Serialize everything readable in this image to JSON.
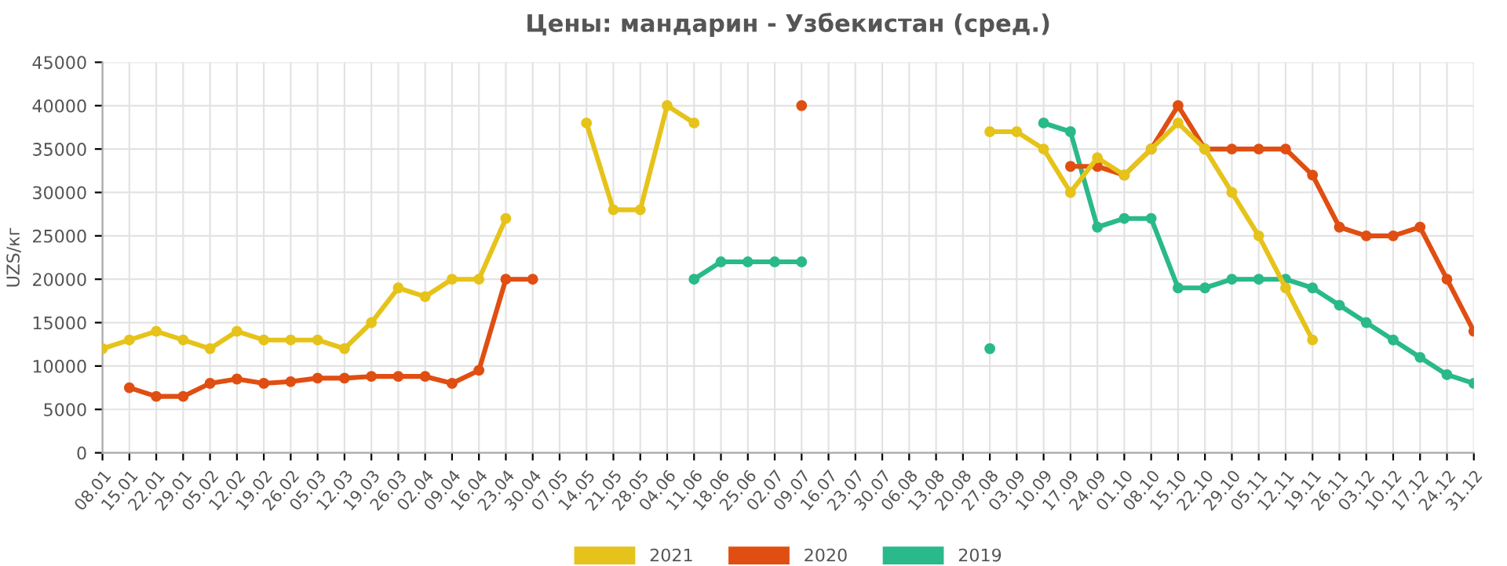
{
  "chart_data": {
    "type": "line",
    "title": "Цены: мандарин - Узбекистан (сред.)",
    "ylabel": "UZS/кг",
    "categories": [
      "08.01",
      "15.01",
      "22.01",
      "29.01",
      "05.02",
      "12.02",
      "19.02",
      "26.02",
      "05.03",
      "12.03",
      "19.03",
      "26.03",
      "02.04",
      "09.04",
      "16.04",
      "23.04",
      "30.04",
      "07.05",
      "14.05",
      "21.05",
      "28.05",
      "04.06",
      "11.06",
      "18.06",
      "25.06",
      "02.07",
      "09.07",
      "16.07",
      "23.07",
      "30.07",
      "06.08",
      "13.08",
      "20.08",
      "27.08",
      "03.09",
      "10.09",
      "17.09",
      "24.09",
      "01.10",
      "08.10",
      "15.10",
      "22.10",
      "29.10",
      "05.11",
      "12.11",
      "19.11",
      "26.11",
      "03.12",
      "10.12",
      "17.12",
      "24.12",
      "31.12"
    ],
    "series": [
      {
        "name": "2021",
        "color": "#e6c31a",
        "values": [
          12000,
          13000,
          14000,
          13000,
          12000,
          14000,
          13000,
          13000,
          13000,
          12000,
          15000,
          19000,
          18000,
          20000,
          20000,
          27000,
          null,
          null,
          38000,
          28000,
          28000,
          40000,
          38000,
          null,
          null,
          null,
          null,
          null,
          null,
          null,
          null,
          null,
          null,
          37000,
          37000,
          35000,
          30000,
          34000,
          32000,
          35000,
          38000,
          35000,
          30000,
          25000,
          19000,
          13000,
          null,
          null,
          null,
          null,
          null,
          null
        ]
      },
      {
        "name": "2020",
        "color": "#e04e12",
        "values": [
          null,
          7500,
          6500,
          6500,
          8000,
          8500,
          8000,
          8200,
          8600,
          8600,
          8800,
          8800,
          8800,
          8000,
          9500,
          20000,
          20000,
          null,
          null,
          null,
          null,
          null,
          null,
          null,
          null,
          null,
          40000,
          null,
          null,
          null,
          null,
          null,
          null,
          null,
          null,
          null,
          33000,
          33000,
          32000,
          35000,
          40000,
          35000,
          35000,
          35000,
          35000,
          32000,
          26000,
          25000,
          25000,
          26000,
          20000,
          14000
        ]
      },
      {
        "name": "2019",
        "color": "#2ab98a",
        "values": [
          null,
          null,
          null,
          null,
          null,
          null,
          null,
          null,
          null,
          null,
          null,
          null,
          null,
          null,
          null,
          null,
          null,
          null,
          null,
          null,
          null,
          null,
          20000,
          22000,
          22000,
          22000,
          22000,
          null,
          null,
          null,
          null,
          null,
          null,
          12000,
          null,
          38000,
          37000,
          26000,
          27000,
          27000,
          19000,
          19000,
          20000,
          20000,
          20000,
          19000,
          17000,
          15000,
          13000,
          11000,
          9000,
          8000
        ]
      }
    ],
    "ylim": [
      0,
      45000
    ],
    "yticks": [
      0,
      5000,
      10000,
      15000,
      20000,
      25000,
      30000,
      35000,
      40000,
      45000
    ],
    "grid": true,
    "legend": "bottom",
    "marker": "circle",
    "line_style": "solid"
  }
}
